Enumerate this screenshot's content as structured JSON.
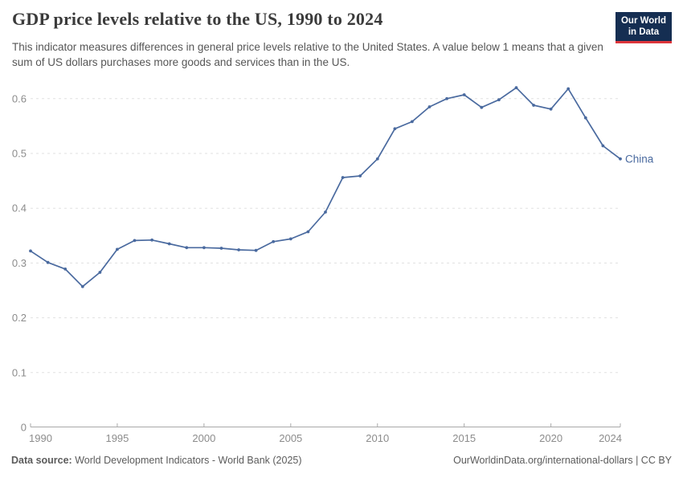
{
  "header": {
    "title": "GDP price levels relative to the US, 1990 to 2024",
    "subtitle": "This indicator measures differences in general price levels relative to the United States. A value below 1 means that a given sum of US dollars purchases more goods and services than in the US.",
    "logo": {
      "line1": "Our World",
      "line2": "in Data",
      "bg_color": "#152e52",
      "accent_color": "#dd353b"
    }
  },
  "chart_data": {
    "type": "line",
    "title": "GDP price levels relative to the US, 1990 to 2024",
    "xlabel": "",
    "ylabel": "",
    "xlim": [
      1990,
      2024
    ],
    "ylim": [
      0,
      0.65
    ],
    "xticks": [
      1990,
      1995,
      2000,
      2005,
      2010,
      2015,
      2020,
      2024
    ],
    "yticks": [
      0,
      0.1,
      0.2,
      0.3,
      0.4,
      0.5,
      0.6
    ],
    "grid": "horizontal dashed",
    "legend_position": "end-of-line label",
    "series": [
      {
        "name": "China",
        "color": "#4a6a9f",
        "x": [
          1990,
          1991,
          1992,
          1993,
          1994,
          1995,
          1996,
          1997,
          1998,
          1999,
          2000,
          2001,
          2002,
          2003,
          2004,
          2005,
          2006,
          2007,
          2008,
          2009,
          2010,
          2011,
          2012,
          2013,
          2014,
          2015,
          2016,
          2017,
          2018,
          2019,
          2020,
          2021,
          2022,
          2023,
          2024
        ],
        "values": [
          0.322,
          0.301,
          0.289,
          0.257,
          0.283,
          0.325,
          0.341,
          0.342,
          0.335,
          0.328,
          0.328,
          0.327,
          0.324,
          0.323,
          0.339,
          0.344,
          0.357,
          0.393,
          0.456,
          0.459,
          0.49,
          0.545,
          0.558,
          0.585,
          0.6,
          0.607,
          0.584,
          0.598,
          0.62,
          0.588,
          0.581,
          0.618,
          0.565,
          0.514,
          0.49
        ]
      }
    ]
  },
  "footer": {
    "source_label": "Data source:",
    "source_text": " World Development Indicators - World Bank (2025)",
    "link_text": "OurWorldinData.org/international-dollars | CC BY"
  },
  "colors": {
    "axis_text": "#8c8c8c",
    "gridline": "#e1e1e1",
    "axis_line": "#a9a9a9",
    "line": "#4a6a9f"
  }
}
